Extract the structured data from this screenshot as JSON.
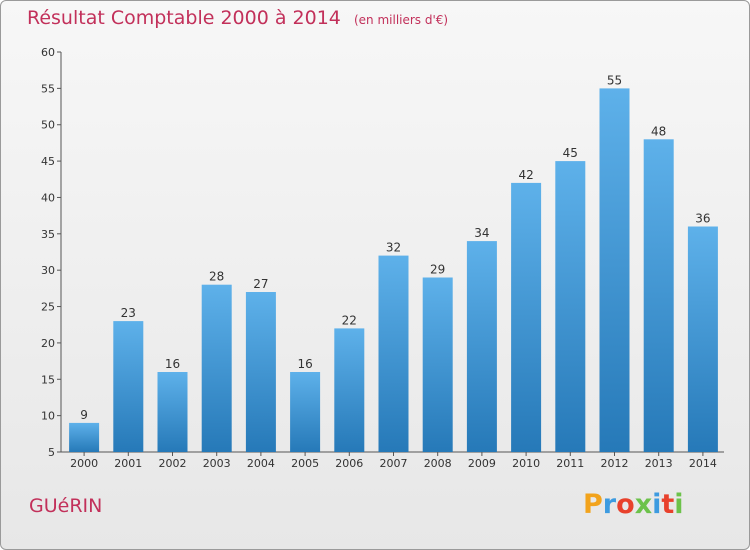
{
  "header": {
    "title": "Résultat Comptable 2000 à 2014",
    "subtitle": "(en milliers d'€)"
  },
  "footer": {
    "commune": "GUéRIN",
    "brand": "Proxiti"
  },
  "colors": {
    "title": "#c2305a",
    "bar_top": "#5eb1ea",
    "bar_bottom": "#2679b8",
    "logo_letters": [
      "#f2a31c",
      "#3d9be0",
      "#e8412c",
      "#6cc24a",
      "#3d9be0",
      "#e8412c",
      "#6cc24a"
    ]
  },
  "chart_data": {
    "type": "bar",
    "title": "Résultat Comptable 2000 à 2014",
    "subtitle": "(en milliers d'€)",
    "categories": [
      "2000",
      "2001",
      "2002",
      "2003",
      "2004",
      "2005",
      "2006",
      "2007",
      "2008",
      "2009",
      "2010",
      "2011",
      "2012",
      "2013",
      "2014"
    ],
    "values": [
      9,
      23,
      16,
      28,
      27,
      16,
      22,
      32,
      29,
      34,
      42,
      45,
      55,
      48,
      36
    ],
    "ylim": [
      5,
      60
    ],
    "yticks": [
      5,
      10,
      15,
      20,
      25,
      30,
      35,
      40,
      45,
      50,
      55,
      60
    ],
    "grid": false,
    "data_labels": true
  }
}
